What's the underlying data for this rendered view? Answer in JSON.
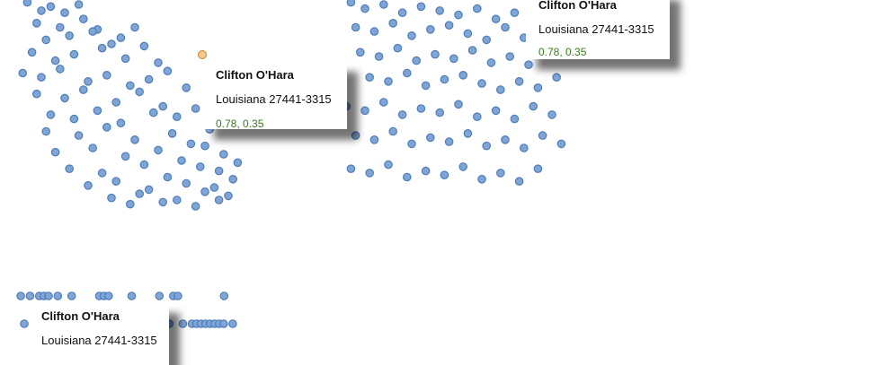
{
  "chart_data": [
    {
      "type": "scatter",
      "name": "panel-left",
      "x": [
        0.02,
        0.05,
        0.07,
        0.1,
        0.13,
        0.04,
        0.09,
        0.14,
        0.17,
        0.06,
        0.11,
        0.16,
        0.2,
        0.22,
        0.25,
        0.03,
        0.08,
        0.12,
        0.18,
        0.23,
        0.27,
        0.3,
        0.01,
        0.05,
        0.09,
        0.15,
        0.19,
        0.24,
        0.28,
        0.32,
        0.04,
        0.1,
        0.14,
        0.21,
        0.26,
        0.31,
        0.36,
        0.07,
        0.12,
        0.17,
        0.22,
        0.29,
        0.34,
        0.38,
        0.06,
        0.13,
        0.19,
        0.25,
        0.33,
        0.37,
        0.41,
        0.08,
        0.16,
        0.23,
        0.3,
        0.35,
        0.4,
        0.44,
        0.11,
        0.18,
        0.27,
        0.32,
        0.39,
        0.43,
        0.47,
        0.15,
        0.21,
        0.28,
        0.36,
        0.42,
        0.46,
        0.2,
        0.26,
        0.34,
        0.4,
        0.45,
        0.24,
        0.31,
        0.38,
        0.43
      ],
      "y": [
        0.98,
        0.94,
        0.96,
        0.93,
        0.97,
        0.88,
        0.86,
        0.9,
        0.85,
        0.8,
        0.82,
        0.84,
        0.78,
        0.81,
        0.86,
        0.74,
        0.7,
        0.73,
        0.76,
        0.71,
        0.77,
        0.69,
        0.64,
        0.62,
        0.66,
        0.6,
        0.63,
        0.58,
        0.61,
        0.65,
        0.54,
        0.52,
        0.56,
        0.5,
        0.55,
        0.48,
        0.57,
        0.44,
        0.42,
        0.46,
        0.4,
        0.45,
        0.43,
        0.47,
        0.36,
        0.34,
        0.38,
        0.32,
        0.35,
        0.3,
        0.37,
        0.26,
        0.28,
        0.24,
        0.27,
        0.22,
        0.29,
        0.25,
        0.18,
        0.16,
        0.2,
        0.14,
        0.19,
        0.17,
        0.21,
        0.1,
        0.12,
        0.08,
        0.11,
        0.09,
        0.13,
        0.04,
        0.06,
        0.03,
        0.07,
        0.05,
        0.01,
        0.02,
        0.0,
        0.03
      ],
      "xlim": [
        0,
        0.5
      ],
      "ylim": [
        0,
        1
      ]
    },
    {
      "type": "scatter",
      "name": "panel-right",
      "x": [
        0.02,
        0.05,
        0.09,
        0.13,
        0.17,
        0.21,
        0.25,
        0.29,
        0.33,
        0.37,
        0.41,
        0.03,
        0.07,
        0.11,
        0.15,
        0.19,
        0.23,
        0.27,
        0.31,
        0.35,
        0.39,
        0.43,
        0.04,
        0.08,
        0.12,
        0.16,
        0.2,
        0.24,
        0.28,
        0.32,
        0.36,
        0.4,
        0.44,
        0.06,
        0.1,
        0.14,
        0.18,
        0.22,
        0.26,
        0.3,
        0.34,
        0.38,
        0.42,
        0.46,
        0.01,
        0.05,
        0.09,
        0.13,
        0.17,
        0.21,
        0.25,
        0.29,
        0.33,
        0.37,
        0.41,
        0.45,
        0.03,
        0.07,
        0.11,
        0.15,
        0.19,
        0.23,
        0.27,
        0.31,
        0.35,
        0.39,
        0.43,
        0.47,
        0.02,
        0.06,
        0.1,
        0.14,
        0.18,
        0.22,
        0.26,
        0.3,
        0.34,
        0.38,
        0.42
      ],
      "y": [
        0.98,
        0.95,
        0.97,
        0.93,
        0.96,
        0.94,
        0.92,
        0.95,
        0.9,
        0.93,
        0.91,
        0.86,
        0.84,
        0.88,
        0.82,
        0.85,
        0.87,
        0.83,
        0.8,
        0.86,
        0.81,
        0.84,
        0.74,
        0.72,
        0.76,
        0.7,
        0.73,
        0.71,
        0.75,
        0.69,
        0.72,
        0.68,
        0.74,
        0.62,
        0.6,
        0.64,
        0.58,
        0.61,
        0.63,
        0.59,
        0.56,
        0.6,
        0.57,
        0.62,
        0.48,
        0.46,
        0.5,
        0.44,
        0.47,
        0.45,
        0.49,
        0.43,
        0.46,
        0.42,
        0.48,
        0.44,
        0.34,
        0.32,
        0.36,
        0.3,
        0.33,
        0.31,
        0.35,
        0.29,
        0.32,
        0.28,
        0.34,
        0.3,
        0.18,
        0.16,
        0.2,
        0.14,
        0.17,
        0.15,
        0.19,
        0.13,
        0.16,
        0.12,
        0.18
      ],
      "xlim": [
        0,
        0.5
      ],
      "ylim": [
        0,
        1
      ]
    },
    {
      "type": "scatter",
      "name": "strip-top-row",
      "x": [
        0.01,
        0.03,
        0.05,
        0.06,
        0.07,
        0.09,
        0.12,
        0.18,
        0.19,
        0.2,
        0.25,
        0.31,
        0.34,
        0.35,
        0.45
      ],
      "y": [
        1,
        1,
        1,
        1,
        1,
        1,
        1,
        1,
        1,
        1,
        1,
        1,
        1,
        1,
        1
      ]
    },
    {
      "type": "scatter",
      "name": "strip-bottom-row",
      "x": [
        0.01,
        0.03,
        0.05,
        0.08,
        0.1,
        0.13,
        0.16,
        0.19,
        0.22,
        0.24,
        0.26,
        0.28,
        0.31,
        0.33,
        0.36,
        0.38,
        0.39,
        0.4,
        0.41,
        0.42,
        0.43,
        0.44,
        0.45,
        0.47
      ],
      "y": [
        0,
        0,
        0,
        0,
        0,
        0,
        0,
        0,
        0,
        0,
        0,
        0,
        0,
        0,
        0,
        0,
        0,
        0,
        0,
        0,
        0,
        0,
        0,
        0
      ]
    }
  ],
  "tooltip": {
    "name": "Clifton O'Hara",
    "address": "Louisiana 27441-3315",
    "coords": "0.78, 0.35"
  },
  "colors": {
    "point_fill": "#7fa5d6",
    "point_stroke": "#4f7db8",
    "highlight_fill": "#f7c98a"
  }
}
